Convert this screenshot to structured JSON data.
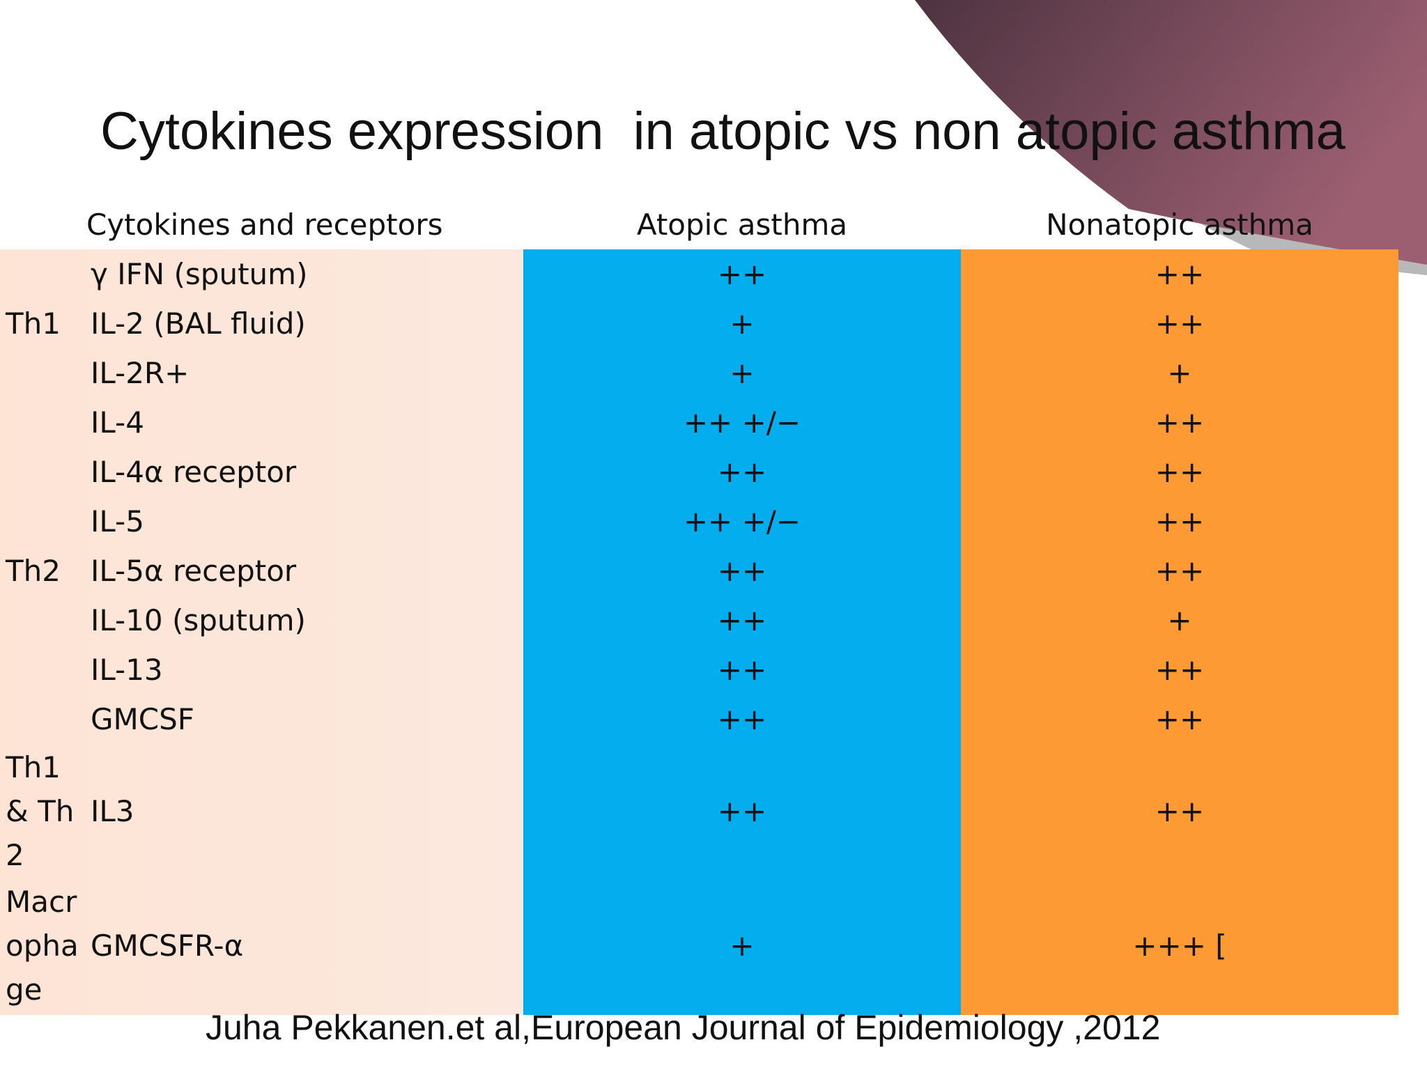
{
  "header": {
    "title": "Cytokines expression  in atopic vs non atopic asthma"
  },
  "table": {
    "columns": [
      "Cytokines and receptors",
      "Atopic asthma",
      "Nonatopic asthma"
    ],
    "rows": [
      [
        null,
        "γ IFN (sputum)",
        "++",
        "++"
      ],
      [
        "Th1",
        "IL-2 (BAL fluid)",
        "+",
        "++"
      ],
      [
        null,
        "IL-2R+",
        "+",
        "+"
      ],
      [
        null,
        "IL-4",
        "++ +/−",
        "++"
      ],
      [
        null,
        "IL-4α receptor",
        "++",
        "++"
      ],
      [
        null,
        "IL-5",
        "++ +/−",
        "++"
      ],
      [
        "Th2",
        "IL-5α receptor",
        "++",
        "++"
      ],
      [
        null,
        "IL-10 (sputum)",
        "++",
        "+"
      ],
      [
        null,
        "IL-13",
        "++",
        "++"
      ],
      [
        null,
        "GMCSF",
        "++",
        "++"
      ],
      [
        "Th1 & Th2",
        "IL3",
        "++",
        "++"
      ],
      [
        "Macrophage",
        "GMCSFR-α",
        "+",
        "+++ ["
      ]
    ]
  },
  "citation": "Juha Pekkanen.et al,European Journal of Epidemiology ,2012"
}
